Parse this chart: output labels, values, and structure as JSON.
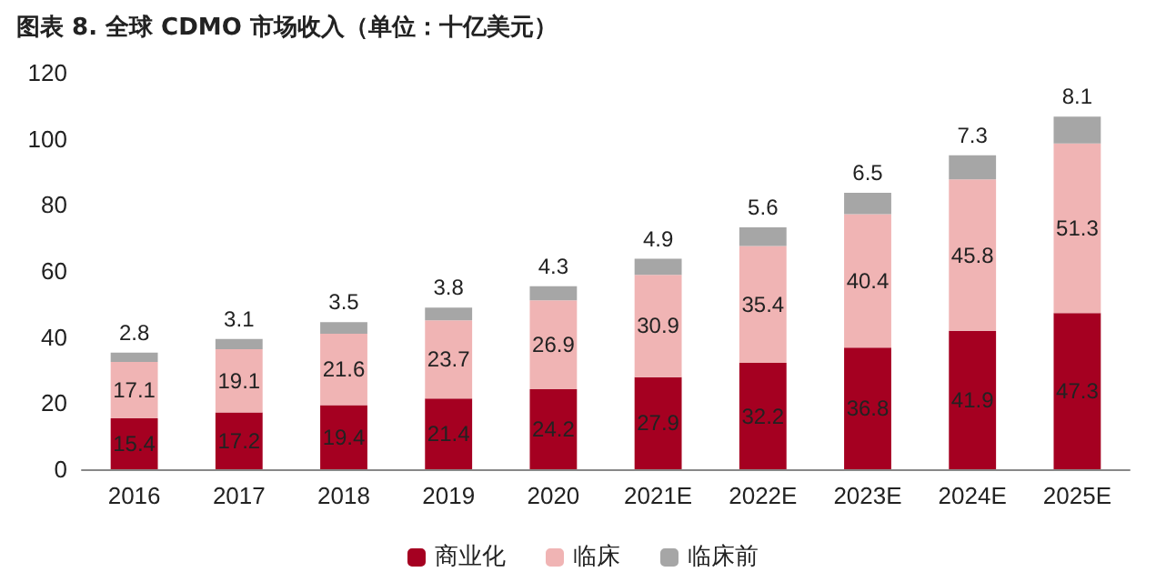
{
  "chart_data": {
    "type": "bar",
    "title": "图表 8. 全球 CDMO 市场收入（单位：十亿美元）",
    "categories": [
      "2016",
      "2017",
      "2018",
      "2019",
      "2020",
      "2021E",
      "2022E",
      "2023E",
      "2024E",
      "2025E"
    ],
    "series": [
      {
        "name": "商业化",
        "color": "#a50021",
        "values": [
          15.4,
          17.2,
          19.4,
          21.4,
          24.2,
          27.9,
          32.2,
          36.8,
          41.9,
          47.3
        ]
      },
      {
        "name": "临床",
        "color": "#f0b4b4",
        "values": [
          17.1,
          19.1,
          21.6,
          23.7,
          26.9,
          30.9,
          35.4,
          40.4,
          45.8,
          51.3
        ]
      },
      {
        "name": "临床前",
        "color": "#a6a6a6",
        "values": [
          2.8,
          3.1,
          3.5,
          3.8,
          4.3,
          4.9,
          5.6,
          6.5,
          7.3,
          8.1
        ]
      }
    ],
    "stacked": true,
    "ylim": [
      0,
      120
    ],
    "yticks": [
      0,
      20,
      40,
      60,
      80,
      100,
      120
    ],
    "data_labels": true,
    "legend": "bottom"
  }
}
